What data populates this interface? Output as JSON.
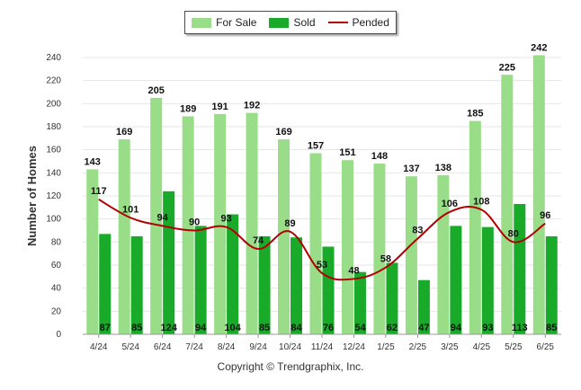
{
  "chart_data": {
    "type": "bar",
    "categories": [
      "4/24",
      "5/24",
      "6/24",
      "7/24",
      "8/24",
      "9/24",
      "10/24",
      "11/24",
      "12/24",
      "1/25",
      "2/25",
      "3/25",
      "4/25",
      "5/25",
      "6/25"
    ],
    "series": [
      {
        "name": "For Sale",
        "type": "bar",
        "color": "#99dd88",
        "values": [
          143,
          169,
          205,
          189,
          191,
          192,
          169,
          157,
          151,
          148,
          137,
          138,
          185,
          225,
          242
        ]
      },
      {
        "name": "Sold",
        "type": "bar",
        "color": "#1aaa2a",
        "values": [
          87,
          85,
          124,
          94,
          104,
          85,
          84,
          76,
          54,
          62,
          47,
          94,
          93,
          113,
          85
        ]
      },
      {
        "name": "Pended",
        "type": "line",
        "color": "#b30000",
        "values": [
          117,
          101,
          94,
          90,
          93,
          74,
          89,
          53,
          48,
          58,
          83,
          106,
          108,
          80,
          96
        ]
      }
    ],
    "ylabel": "Number of Homes",
    "xlabel": "",
    "ylim": [
      0,
      240
    ],
    "yticks": [
      0,
      20,
      40,
      60,
      80,
      100,
      120,
      140,
      160,
      180,
      200,
      220,
      240
    ],
    "grid": true,
    "legend": "top-center"
  },
  "footer": {
    "copyright": "Copyright © Trendgraphix, Inc."
  }
}
